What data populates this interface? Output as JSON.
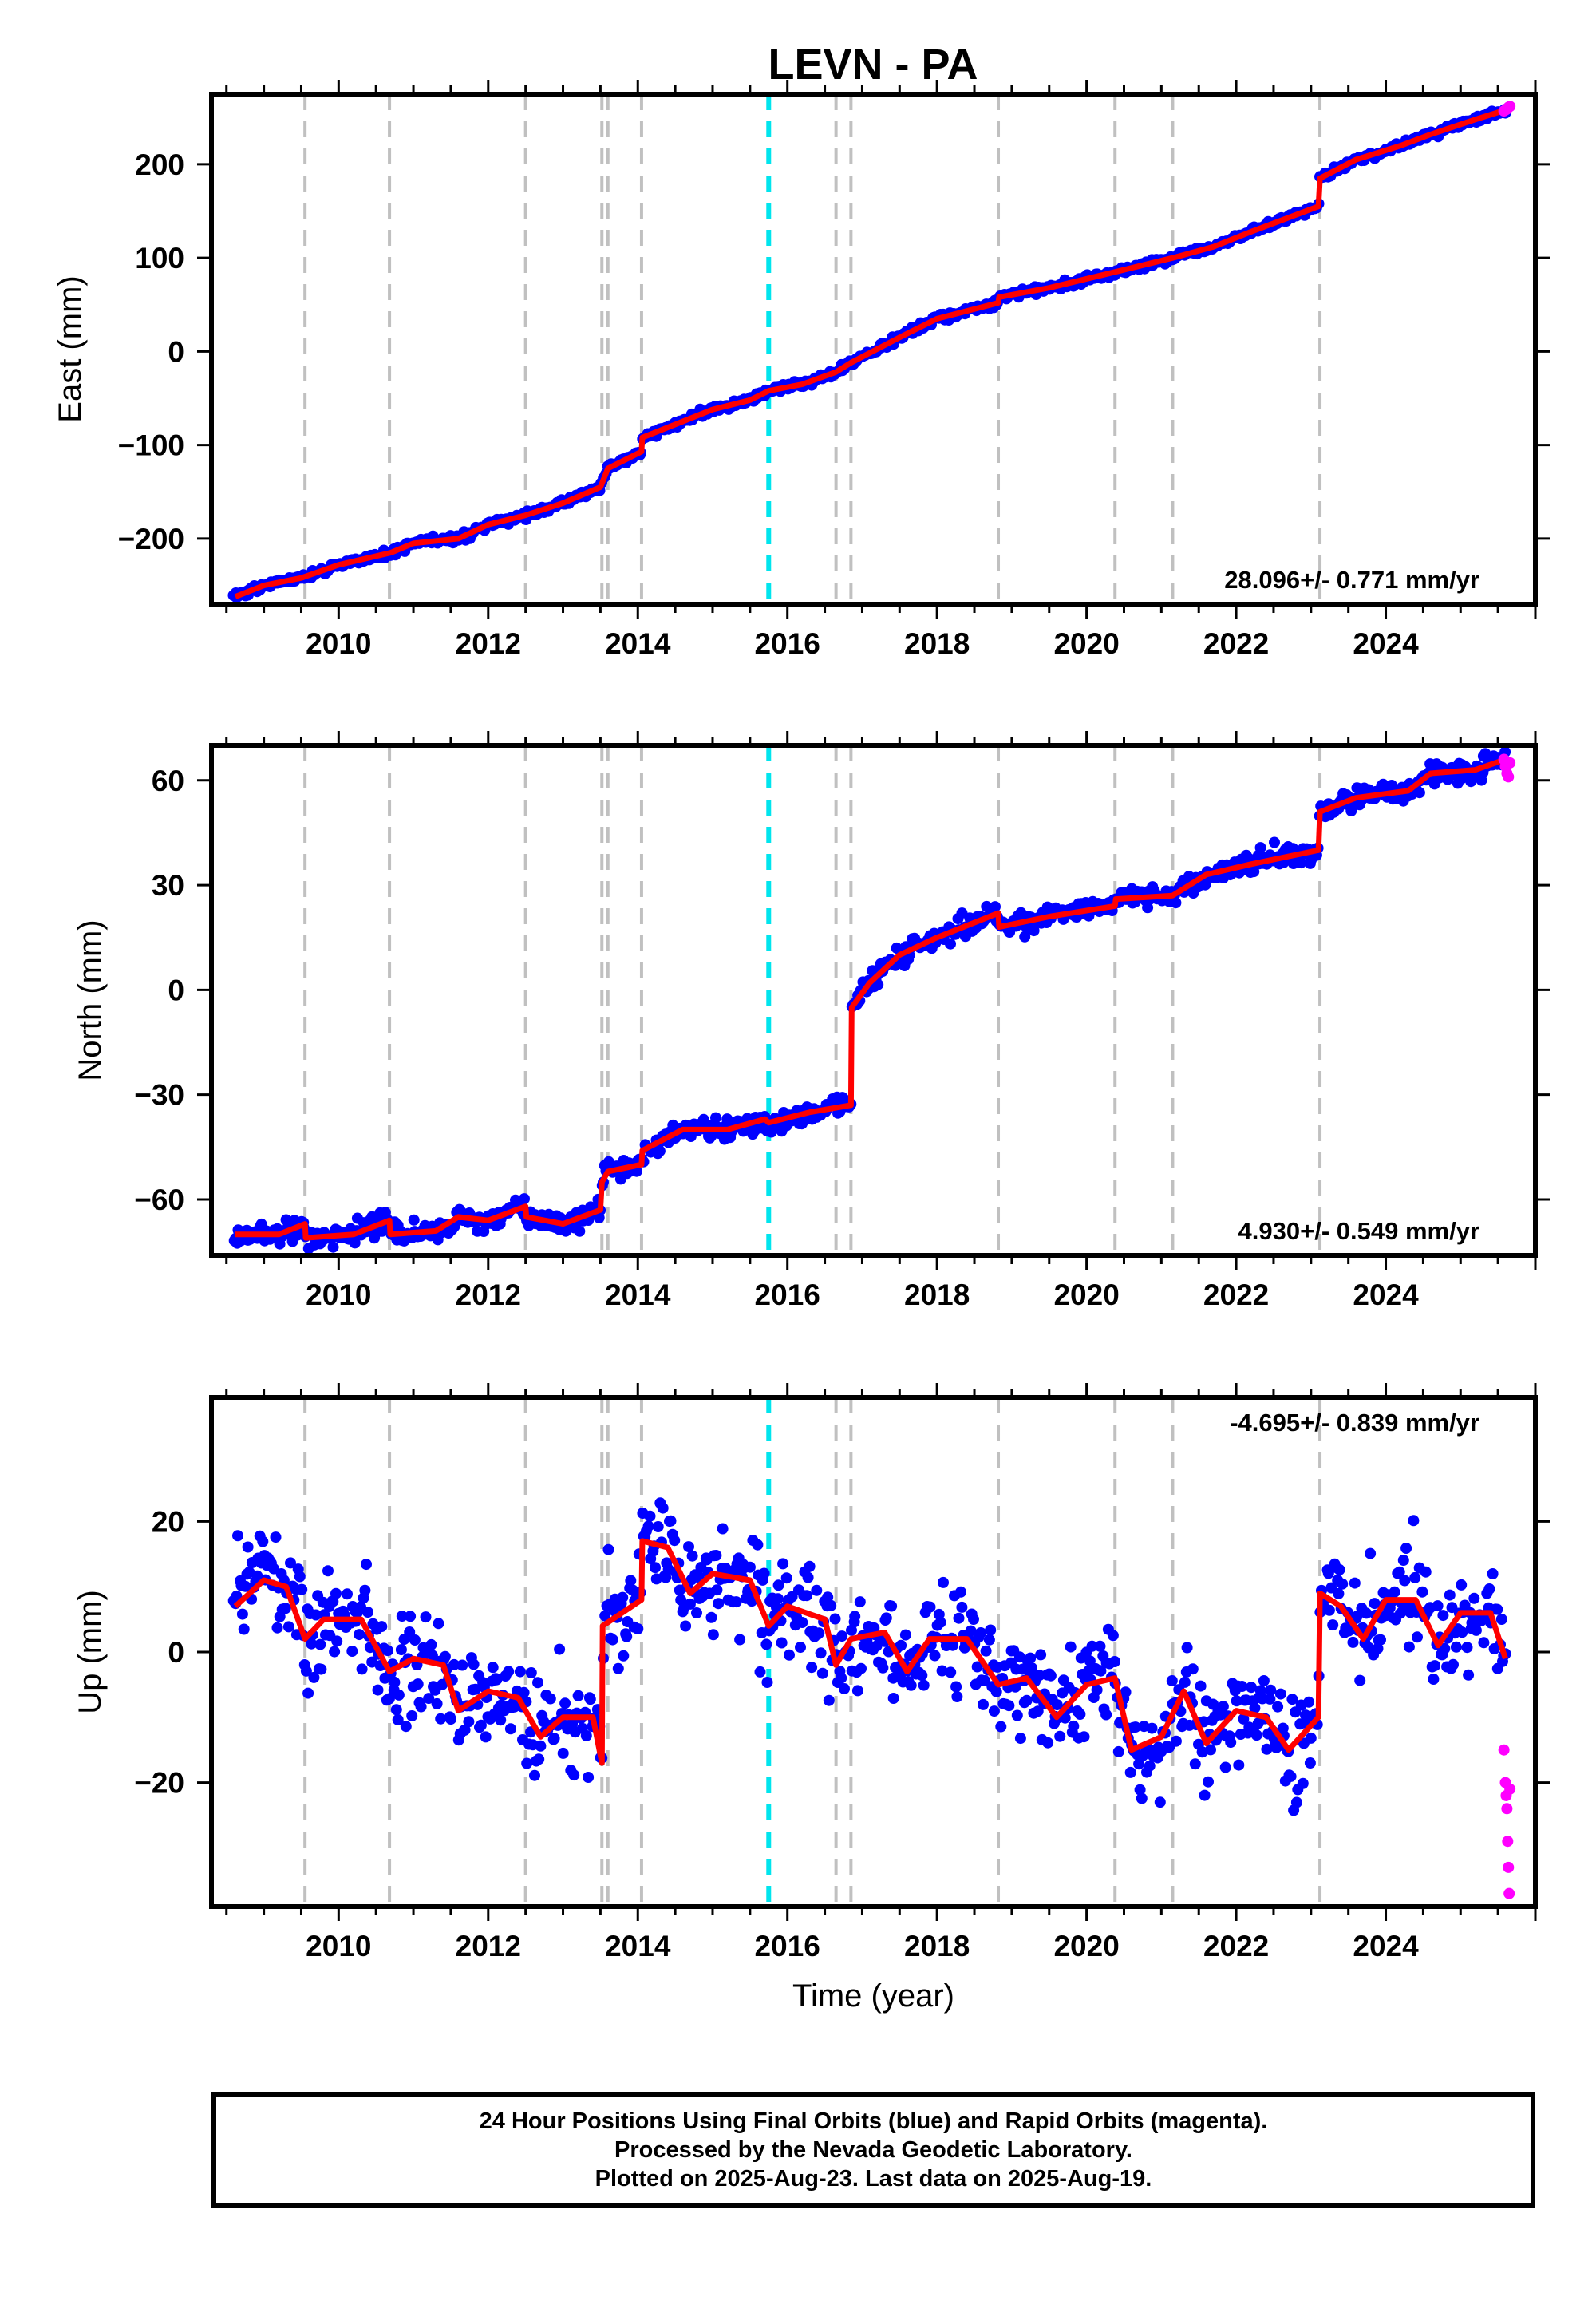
{
  "title": "LEVN - PA",
  "footer": {
    "line1": "24 Hour Positions Using Final Orbits (blue) and Rapid Orbits (magenta).",
    "line2": "Processed by the Nevada Geodetic Laboratory.",
    "line3": "Plotted on 2025-Aug-23. Last data on 2025-Aug-19."
  },
  "colors": {
    "final_orbits": "#0000ff",
    "rapid_orbits": "#ff00ff",
    "model": "#ff0000",
    "gray_event": "#c0c0c0",
    "cyan_event": "#00e5ee"
  },
  "chart_data": [
    {
      "type": "scatter",
      "panel": "east",
      "ylabel": "East (mm)",
      "xlabel": "",
      "xlim": [
        2008.3,
        2026.0
      ],
      "ylim": [
        -270,
        275
      ],
      "yticks": [
        -200,
        -100,
        0,
        100,
        200
      ],
      "ytick_labels": [
        "−200",
        "−100",
        "0",
        "100",
        "200"
      ],
      "xticks": [
        2010,
        2012,
        2014,
        2016,
        2018,
        2020,
        2022,
        2024
      ],
      "xtick_labels": [
        "2010",
        "2012",
        "2014",
        "2016",
        "2018",
        "2020",
        "2022",
        "2024"
      ],
      "rate_label": "28.096+/- 0.771 mm/yr",
      "rate_position": "bottom-right",
      "gray_event_lines": [
        2009.55,
        2010.68,
        2012.5,
        2013.52,
        2013.6,
        2014.05,
        2016.65,
        2016.85,
        2018.82,
        2020.38,
        2021.15,
        2023.12
      ],
      "cyan_event_lines": [
        2015.75
      ],
      "model_breakpoints": [
        [
          2008.62,
          -262
        ],
        [
          2009.0,
          -250
        ],
        [
          2009.5,
          -242
        ],
        [
          2010.0,
          -228
        ],
        [
          2010.7,
          -215
        ],
        [
          2011.0,
          -205
        ],
        [
          2011.6,
          -200
        ],
        [
          2012.0,
          -185
        ],
        [
          2012.5,
          -175
        ],
        [
          2013.0,
          -162
        ],
        [
          2013.5,
          -145
        ],
        [
          2013.6,
          -125
        ],
        [
          2014.05,
          -107
        ],
        [
          2014.06,
          -92
        ],
        [
          2014.5,
          -78
        ],
        [
          2015.0,
          -62
        ],
        [
          2015.5,
          -52
        ],
        [
          2015.75,
          -42
        ],
        [
          2016.2,
          -35
        ],
        [
          2016.65,
          -22
        ],
        [
          2016.85,
          -12
        ],
        [
          2017.5,
          15
        ],
        [
          2018.0,
          35
        ],
        [
          2018.82,
          52
        ],
        [
          2018.83,
          58
        ],
        [
          2019.5,
          68
        ],
        [
          2020.38,
          85
        ],
        [
          2021.15,
          100
        ],
        [
          2021.7,
          112
        ],
        [
          2022.2,
          128
        ],
        [
          2023.1,
          155
        ],
        [
          2023.12,
          185
        ],
        [
          2023.6,
          205
        ],
        [
          2024.2,
          220
        ],
        [
          2024.6,
          232
        ],
        [
          2025.2,
          248
        ],
        [
          2025.6,
          258
        ]
      ],
      "final_series": {
        "start": 2008.6,
        "end": 2025.6,
        "noise_mm": 2.0
      },
      "rapid_points": [
        [
          2025.58,
          257
        ],
        [
          2025.6,
          258
        ],
        [
          2025.62,
          259
        ],
        [
          2025.64,
          261
        ],
        [
          2025.66,
          262
        ]
      ]
    },
    {
      "type": "scatter",
      "panel": "north",
      "ylabel": "North (mm)",
      "xlabel": "",
      "xlim": [
        2008.3,
        2026.0
      ],
      "ylim": [
        -76,
        70
      ],
      "yticks": [
        -60,
        -30,
        0,
        30,
        60
      ],
      "ytick_labels": [
        "−60",
        "−30",
        "0",
        "30",
        "60"
      ],
      "xticks": [
        2010,
        2012,
        2014,
        2016,
        2018,
        2020,
        2022,
        2024
      ],
      "xtick_labels": [
        "2010",
        "2012",
        "2014",
        "2016",
        "2018",
        "2020",
        "2022",
        "2024"
      ],
      "rate_label": "4.930+/- 0.549 mm/yr",
      "rate_position": "bottom-right",
      "gray_event_lines": [
        2009.55,
        2010.68,
        2012.5,
        2013.52,
        2013.6,
        2014.05,
        2016.65,
        2016.85,
        2018.82,
        2020.38,
        2021.15,
        2023.12
      ],
      "cyan_event_lines": [
        2015.75
      ],
      "model_breakpoints": [
        [
          2008.62,
          -70
        ],
        [
          2009.2,
          -70
        ],
        [
          2009.55,
          -67
        ],
        [
          2009.56,
          -71
        ],
        [
          2010.2,
          -70
        ],
        [
          2010.68,
          -66
        ],
        [
          2010.69,
          -70
        ],
        [
          2011.3,
          -69
        ],
        [
          2011.6,
          -65
        ],
        [
          2012.0,
          -66
        ],
        [
          2012.5,
          -62
        ],
        [
          2012.51,
          -65
        ],
        [
          2013.0,
          -67
        ],
        [
          2013.5,
          -63
        ],
        [
          2013.52,
          -55
        ],
        [
          2013.6,
          -52
        ],
        [
          2014.05,
          -50
        ],
        [
          2014.06,
          -46
        ],
        [
          2014.6,
          -40
        ],
        [
          2015.2,
          -40
        ],
        [
          2015.7,
          -37
        ],
        [
          2015.75,
          -38
        ],
        [
          2016.3,
          -35
        ],
        [
          2016.85,
          -33
        ],
        [
          2016.86,
          -5
        ],
        [
          2017.1,
          2
        ],
        [
          2017.5,
          10
        ],
        [
          2018.0,
          15
        ],
        [
          2018.82,
          22
        ],
        [
          2018.83,
          18
        ],
        [
          2019.5,
          21
        ],
        [
          2020.38,
          24
        ],
        [
          2020.39,
          26
        ],
        [
          2021.15,
          27
        ],
        [
          2021.6,
          33
        ],
        [
          2022.2,
          36
        ],
        [
          2023.1,
          40
        ],
        [
          2023.12,
          51
        ],
        [
          2023.6,
          55
        ],
        [
          2024.3,
          57
        ],
        [
          2024.6,
          62
        ],
        [
          2025.2,
          63
        ],
        [
          2025.6,
          66
        ]
      ],
      "final_series": {
        "start": 2008.6,
        "end": 2025.6,
        "noise_mm": 1.5
      },
      "rapid_points": [
        [
          2025.58,
          66
        ],
        [
          2025.6,
          64
        ],
        [
          2025.62,
          62
        ],
        [
          2025.64,
          61
        ],
        [
          2025.66,
          65
        ]
      ]
    },
    {
      "type": "scatter",
      "panel": "up",
      "ylabel": "Up (mm)",
      "xlabel": "Time (year)",
      "xlim": [
        2008.3,
        2026.0
      ],
      "ylim": [
        -39,
        39
      ],
      "yticks": [
        -20,
        0,
        20
      ],
      "ytick_labels": [
        "−20",
        "0",
        "20"
      ],
      "xticks": [
        2010,
        2012,
        2014,
        2016,
        2018,
        2020,
        2022,
        2024
      ],
      "xtick_labels": [
        "2010",
        "2012",
        "2014",
        "2016",
        "2018",
        "2020",
        "2022",
        "2024"
      ],
      "rate_label": "-4.695+/- 0.839 mm/yr",
      "rate_position": "top-right",
      "gray_event_lines": [
        2009.55,
        2010.68,
        2012.5,
        2013.52,
        2013.6,
        2014.05,
        2016.65,
        2016.85,
        2018.82,
        2020.38,
        2021.15,
        2023.12
      ],
      "cyan_event_lines": [
        2015.75
      ],
      "model_breakpoints": [
        [
          2008.62,
          7
        ],
        [
          2009.0,
          11
        ],
        [
          2009.3,
          10
        ],
        [
          2009.55,
          2
        ],
        [
          2009.8,
          5
        ],
        [
          2010.3,
          5
        ],
        [
          2010.68,
          -3
        ],
        [
          2011.0,
          -1
        ],
        [
          2011.4,
          -2
        ],
        [
          2011.6,
          -9
        ],
        [
          2012.0,
          -6
        ],
        [
          2012.4,
          -7
        ],
        [
          2012.7,
          -13
        ],
        [
          2013.0,
          -10
        ],
        [
          2013.4,
          -10
        ],
        [
          2013.52,
          -17
        ],
        [
          2013.53,
          4
        ],
        [
          2014.05,
          8
        ],
        [
          2014.06,
          17
        ],
        [
          2014.4,
          16
        ],
        [
          2014.7,
          9
        ],
        [
          2015.0,
          12
        ],
        [
          2015.5,
          11
        ],
        [
          2015.75,
          4
        ],
        [
          2016.0,
          7
        ],
        [
          2016.5,
          5
        ],
        [
          2016.65,
          -2
        ],
        [
          2016.85,
          2
        ],
        [
          2017.3,
          3
        ],
        [
          2017.6,
          -3
        ],
        [
          2017.9,
          2
        ],
        [
          2018.4,
          2
        ],
        [
          2018.82,
          -5
        ],
        [
          2019.2,
          -4
        ],
        [
          2019.6,
          -10
        ],
        [
          2020.0,
          -5
        ],
        [
          2020.38,
          -4
        ],
        [
          2020.6,
          -15
        ],
        [
          2021.0,
          -13
        ],
        [
          2021.3,
          -6
        ],
        [
          2021.6,
          -14
        ],
        [
          2022.0,
          -9
        ],
        [
          2022.4,
          -10
        ],
        [
          2022.7,
          -15
        ],
        [
          2023.1,
          -10
        ],
        [
          2023.12,
          9
        ],
        [
          2023.4,
          7
        ],
        [
          2023.7,
          2
        ],
        [
          2024.0,
          8
        ],
        [
          2024.4,
          8
        ],
        [
          2024.7,
          1
        ],
        [
          2025.0,
          6
        ],
        [
          2025.4,
          6
        ],
        [
          2025.6,
          -1
        ]
      ],
      "final_series": {
        "start": 2008.6,
        "end": 2025.6,
        "noise_mm": 4.0
      },
      "rapid_points": [
        [
          2025.58,
          -15
        ],
        [
          2025.6,
          -20
        ],
        [
          2025.61,
          -22
        ],
        [
          2025.62,
          -24
        ],
        [
          2025.63,
          -29
        ],
        [
          2025.64,
          -33
        ],
        [
          2025.65,
          -37
        ],
        [
          2025.66,
          -21
        ]
      ]
    }
  ]
}
